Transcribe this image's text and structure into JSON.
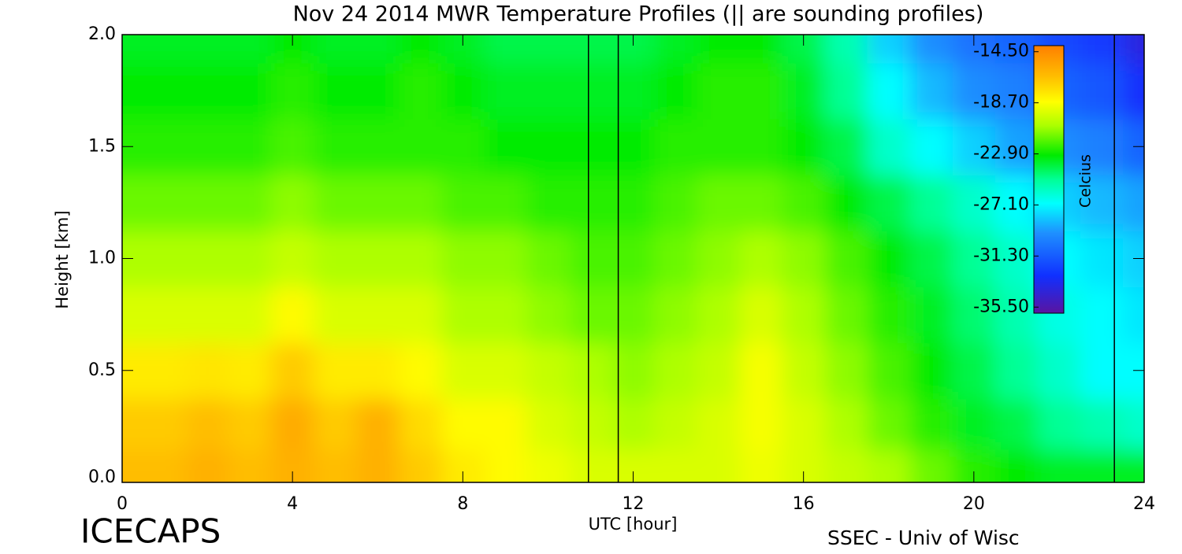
{
  "chart_data": {
    "type": "heatmap",
    "title": "Nov 24 2014 MWR Temperature Profiles (|| are sounding profiles)",
    "xlabel": "UTC [hour]",
    "ylabel": "Height [km]",
    "colorbar_label": "Celcius",
    "footer_left": "ICECAPS",
    "footer_right": "SSEC - Univ of Wisc",
    "x": [
      0,
      1,
      2,
      3,
      4,
      5,
      6,
      7,
      8,
      9,
      10,
      11,
      12,
      13,
      14,
      15,
      16,
      17,
      18,
      19,
      20,
      21,
      22,
      23,
      24
    ],
    "y": [
      0.05,
      0.25,
      0.5,
      0.75,
      1.0,
      1.25,
      1.5,
      1.75,
      2.0
    ],
    "values": [
      [
        -16.5,
        -16.5,
        -16,
        -16.5,
        -16,
        -16.5,
        -16,
        -17,
        -18,
        -18.5,
        -19,
        -19.5,
        -19.5,
        -19.5,
        -19.5,
        -19,
        -19.5,
        -20,
        -20.5,
        -21.5,
        -22.5,
        -23,
        -23.5,
        -23.5,
        -23.5
      ],
      [
        -17,
        -17,
        -16.5,
        -17,
        -15.8,
        -17,
        -16,
        -17.5,
        -18.5,
        -18.5,
        -19.5,
        -20,
        -20.5,
        -20,
        -19.5,
        -18.8,
        -19.5,
        -20.5,
        -21.5,
        -22.5,
        -23.5,
        -24,
        -25,
        -25.5,
        -26
      ],
      [
        -18,
        -18,
        -17.8,
        -18,
        -17,
        -18,
        -18,
        -18.5,
        -19.5,
        -19.5,
        -20,
        -20.5,
        -21,
        -20.5,
        -20,
        -18.8,
        -20,
        -21,
        -22,
        -23,
        -24,
        -25,
        -26,
        -27,
        -27
      ],
      [
        -19.5,
        -19.5,
        -19.5,
        -19.5,
        -18.5,
        -19.5,
        -19.5,
        -19.5,
        -20.5,
        -20.5,
        -21,
        -21.5,
        -21.5,
        -21,
        -20.5,
        -19.5,
        -20.5,
        -21.5,
        -22.5,
        -23.5,
        -24.5,
        -25.5,
        -26.5,
        -27,
        -27.5
      ],
      [
        -20.5,
        -20.5,
        -20.5,
        -20.5,
        -20,
        -20.5,
        -20.5,
        -20.5,
        -21,
        -21,
        -21.5,
        -22,
        -22,
        -21.5,
        -21,
        -20.5,
        -21,
        -22,
        -23,
        -24,
        -25,
        -26,
        -27,
        -27.5,
        -28
      ],
      [
        -21.5,
        -21.5,
        -21.5,
        -21.5,
        -21,
        -21.5,
        -21.5,
        -21.5,
        -22,
        -22,
        -22.5,
        -22.5,
        -22.5,
        -22,
        -21.5,
        -21.5,
        -22,
        -23,
        -24,
        -25,
        -26,
        -27,
        -28,
        -28.5,
        -29
      ],
      [
        -22.5,
        -22.5,
        -22.5,
        -22.5,
        -22,
        -22.5,
        -22.5,
        -22.5,
        -22.5,
        -23,
        -23,
        -23,
        -23,
        -22.5,
        -22.5,
        -22.5,
        -23,
        -24,
        -26,
        -27,
        -28,
        -29,
        -29.5,
        -30,
        -31
      ],
      [
        -23,
        -23,
        -23,
        -23,
        -22.5,
        -23,
        -23,
        -22.5,
        -23,
        -23.5,
        -23.5,
        -23.5,
        -23.5,
        -23,
        -22.5,
        -22.5,
        -23.5,
        -25,
        -27,
        -28.5,
        -29.5,
        -30,
        -31,
        -31.5,
        -33
      ],
      [
        -23.5,
        -23.5,
        -23.5,
        -23.5,
        -23,
        -23.5,
        -23.5,
        -23,
        -23.5,
        -24,
        -24,
        -24,
        -24,
        -23.5,
        -23,
        -23,
        -24,
        -25.5,
        -28,
        -29.5,
        -30.5,
        -31,
        -32,
        -32.5,
        -34
      ]
    ],
    "sounding_times": [
      10.95,
      11.65,
      23.3
    ],
    "xlim": [
      0,
      24
    ],
    "xticks": [
      0,
      4,
      8,
      12,
      16,
      20,
      24
    ],
    "ylim": [
      0,
      2
    ],
    "yticks": [
      {
        "value": 0,
        "label": "0.0"
      },
      {
        "value": 0.5,
        "label": "0.5"
      },
      {
        "value": 1,
        "label": "1.0"
      },
      {
        "value": 1.5,
        "label": "1.5"
      },
      {
        "value": 2,
        "label": "2.0"
      }
    ],
    "clim": [
      -36,
      -14
    ],
    "cticks": [
      {
        "value": -14.5,
        "label": "-14.50"
      },
      {
        "value": -18.7,
        "label": "-18.70"
      },
      {
        "value": -22.9,
        "label": "-22.90"
      },
      {
        "value": -27.1,
        "label": "-27.10"
      },
      {
        "value": -31.3,
        "label": "-31.30"
      },
      {
        "value": -35.5,
        "label": "-35.50"
      }
    ]
  }
}
